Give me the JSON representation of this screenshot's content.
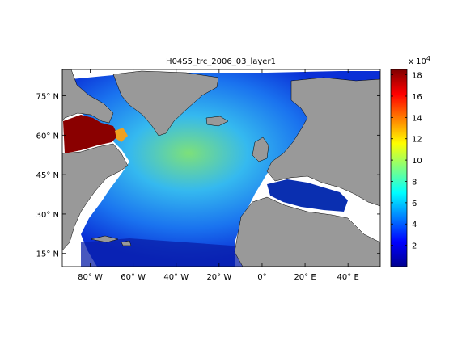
{
  "figure": {
    "title": "H04S5_trc_2006_03_layer1"
  },
  "map": {
    "lon_range": [
      -93,
      55
    ],
    "lat_range": [
      10,
      85
    ],
    "x_ticks": [
      {
        "value": -80,
        "label": "80° W"
      },
      {
        "value": -60,
        "label": "60° W"
      },
      {
        "value": -40,
        "label": "40° W"
      },
      {
        "value": -20,
        "label": "20° W"
      },
      {
        "value": 0,
        "label": "0°"
      },
      {
        "value": 20,
        "label": "20° E"
      },
      {
        "value": 40,
        "label": "40° E"
      }
    ],
    "y_ticks": [
      {
        "value": 75,
        "label": "75° N"
      },
      {
        "value": 60,
        "label": "60° N"
      },
      {
        "value": 45,
        "label": "45° N"
      },
      {
        "value": 30,
        "label": "30° N"
      },
      {
        "value": 15,
        "label": "15° N"
      }
    ],
    "land_color": "#999999",
    "nodata_color": "#ffffff"
  },
  "colorbar": {
    "multiplier": "x 10",
    "exponent": "4",
    "range": [
      0,
      18.5
    ],
    "ticks": [
      {
        "value": 2,
        "label": "2"
      },
      {
        "value": 4,
        "label": "4"
      },
      {
        "value": 6,
        "label": "6"
      },
      {
        "value": 8,
        "label": "8"
      },
      {
        "value": 10,
        "label": "10"
      },
      {
        "value": 12,
        "label": "12"
      },
      {
        "value": 14,
        "label": "14"
      },
      {
        "value": 16,
        "label": "16"
      },
      {
        "value": 18,
        "label": "18"
      }
    ],
    "colormap": [
      "#00008f",
      "#0000ff",
      "#0080ff",
      "#00ffff",
      "#80ff80",
      "#ffff00",
      "#ff8000",
      "#ff0000",
      "#800000"
    ]
  }
}
